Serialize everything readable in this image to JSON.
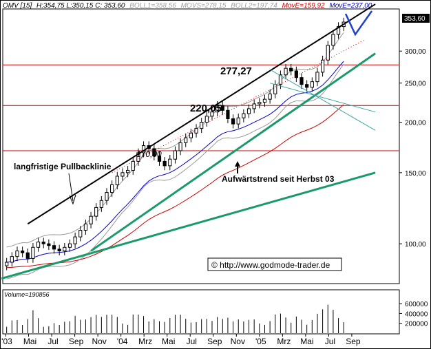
{
  "chart_data": {
    "type": "candlestick",
    "header": {
      "symbol": "OMV [15]",
      "ohlc": "H:354,75 L:350,15 C: 353,60",
      "boll1": "BOLL1=358,56",
      "movs": "MOVS=278,15",
      "boll2": "BOLL2=197,74",
      "move1": "MovE=159,92",
      "move2": "MovE=237,00"
    },
    "last_price_label": "353,60",
    "y_scale": "log",
    "y_range": [
      80,
      380
    ],
    "y_ticks": [
      "300,00",
      "250,00",
      "200,00",
      "150,00",
      "100,00"
    ],
    "y_tick_values": [
      300,
      250,
      200,
      150,
      100
    ],
    "volume_label": "Volume=190856",
    "volume_ticks": [
      "600000",
      "400000",
      "200000"
    ],
    "volume_tick_values": [
      600000,
      400000,
      200000
    ],
    "x_ticks": [
      "'03",
      "Mai",
      "Jul",
      "Sep",
      "Nov",
      "'04",
      "Mrz",
      "Mai",
      "Jul",
      "Sep",
      "Nov",
      "'05",
      "Mrz",
      "Mai",
      "Jul",
      "Sep"
    ],
    "x_tick_index": [
      0,
      2,
      4,
      6,
      8,
      10,
      12,
      14,
      16,
      18,
      20,
      22,
      24,
      26,
      28,
      30
    ],
    "x_range": [
      0,
      34
    ],
    "candles_close": [
      90,
      93,
      96,
      95,
      92,
      98,
      101,
      100,
      99,
      97,
      96,
      98,
      100,
      104,
      108,
      112,
      117,
      123,
      128,
      134,
      140,
      147,
      150,
      152,
      160,
      168,
      175,
      172,
      165,
      160,
      156,
      162,
      170,
      178,
      183,
      188,
      193,
      200,
      207,
      212,
      220,
      214,
      204,
      198,
      205,
      210,
      216,
      222,
      224,
      228,
      235,
      248,
      262,
      272,
      268,
      258,
      248,
      244,
      252,
      266,
      285,
      310,
      330,
      345,
      354
    ],
    "levels": [
      {
        "label": "277,27",
        "value": 277.27
      },
      {
        "label": "220,05",
        "value": 220.05
      },
      {
        "label": "170,00",
        "value": 170.0
      }
    ],
    "annotations": [
      {
        "text": "langfristige Pullbacklinie"
      },
      {
        "text": "Aufwärtstrend seit Herbst 03"
      },
      {
        "text": "© http://www.godmode-trader.de"
      }
    ],
    "colors": {
      "level_lines": "#cc0000",
      "pullback_line": "#000000",
      "trend_lines": "#1a9a6a",
      "ma_fast": "#0000cc",
      "ma_slow": "#cc0000",
      "boll": "#999999",
      "channel": "#3aa6a6",
      "v_mark": "#1f3fd0",
      "header_red": "#cc0000",
      "header_blue": "#0000cc",
      "header_gray": "#a0a0a0"
    }
  }
}
